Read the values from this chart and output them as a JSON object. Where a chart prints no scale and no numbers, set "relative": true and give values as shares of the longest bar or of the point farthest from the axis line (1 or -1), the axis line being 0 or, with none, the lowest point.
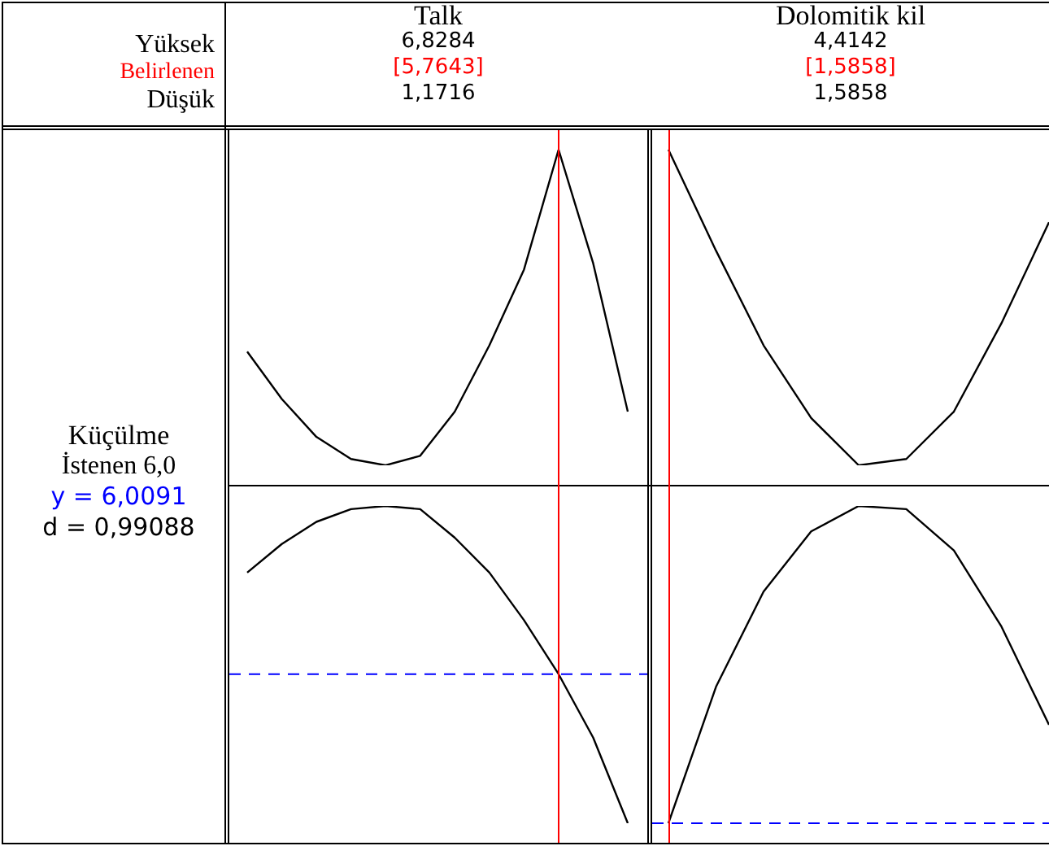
{
  "chart_data": [
    {
      "type": "other",
      "annotations": [
        "Yüksek",
        "Belirlenen",
        "Düşük",
        "Küçülme",
        "İstenen 6,0",
        "y = 6,0091",
        "d = 0,99088"
      ]
    },
    {
      "type": "line",
      "title": "Talk",
      "relative": true,
      "tick_labels": false,
      "annotations": [
        "6,8284",
        "[5,7643]",
        "1,1716"
      ],
      "categories": [
        null,
        null,
        null,
        null,
        null,
        null,
        null,
        null,
        null,
        null,
        null,
        null
      ],
      "series": [
        {
          "color": "#000000",
          "values": [
            0.36,
            0.21,
            0.09,
            0.02,
            0,
            0.03,
            0.17,
            0.38,
            0.62,
            1,
            0.64,
            0.17
          ]
        }
      ]
    },
    {
      "type": "line",
      "title": "Dolomitik kil",
      "relative": true,
      "tick_labels": false,
      "annotations": [
        "4,4142",
        "[1,5858]",
        "1,5858"
      ],
      "categories": [
        null,
        null,
        null,
        null,
        null,
        null,
        null,
        null,
        null
      ],
      "series": [
        {
          "color": "#000000",
          "values": [
            1,
            0.68,
            0.38,
            0.15,
            0,
            0.02,
            0.17,
            0.45,
            0.77
          ]
        }
      ]
    },
    {
      "type": "line",
      "relative": true,
      "tick_labels": false,
      "categories": [
        null,
        null,
        null,
        null,
        null,
        null,
        null,
        null,
        null,
        null,
        null,
        null
      ],
      "series": [
        {
          "color": "#000000",
          "values": [
            0.79,
            0.88,
            0.95,
            0.99,
            1,
            0.99,
            0.9,
            0.79,
            0.64,
            0.47,
            0.27,
            0
          ]
        }
      ],
      "ref_lines": [
        {
          "axis": "y",
          "value": 0.47,
          "color": "#0000ff",
          "line_style": "dashed"
        }
      ]
    },
    {
      "type": "line",
      "relative": true,
      "tick_labels": false,
      "categories": [
        null,
        null,
        null,
        null,
        null,
        null,
        null,
        null,
        null
      ],
      "series": [
        {
          "color": "#000000",
          "values": [
            0,
            0.43,
            0.73,
            0.92,
            1,
            0.99,
            0.86,
            0.62,
            0.31
          ]
        }
      ],
      "ref_lines": [
        {
          "axis": "y",
          "value": 0,
          "color": "#0000ff",
          "line_style": "dashed"
        }
      ]
    }
  ]
}
